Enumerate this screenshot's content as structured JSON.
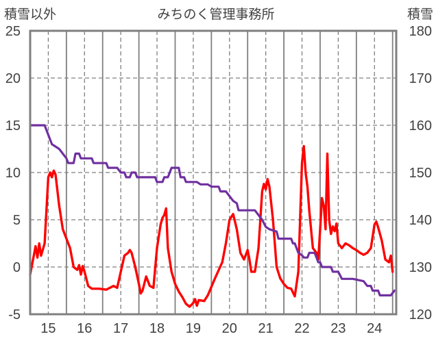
{
  "chart_data": {
    "type": "line",
    "title": "みちのく管理事務所",
    "y_left": {
      "label": "積雪以外",
      "range": [
        -5,
        25
      ],
      "ticks": [
        25,
        20,
        15,
        10,
        5,
        0,
        -5
      ]
    },
    "y_right": {
      "label": "積雪",
      "range": [
        120,
        180
      ],
      "ticks": [
        180,
        170,
        160,
        150,
        140,
        130,
        120
      ]
    },
    "x": {
      "range": [
        14.5,
        24.6
      ],
      "ticks": [
        15,
        16,
        17,
        18,
        19,
        20,
        21,
        22,
        23,
        24
      ]
    },
    "grid": {
      "horizontal": "dashed",
      "vertical_major": "solid",
      "vertical_minor": "dashed"
    },
    "colors": {
      "temperature": "#ff0000",
      "snow": "#7030a0",
      "frame": "#7f7f7f",
      "grid": "#7f7f7f"
    },
    "series": [
      {
        "axis": "left",
        "color": "#ff0000",
        "points": [
          [
            14.5,
            -0.8
          ],
          [
            14.6,
            1.2
          ],
          [
            14.65,
            2.2
          ],
          [
            14.7,
            1.0
          ],
          [
            14.75,
            2.5
          ],
          [
            14.8,
            1.2
          ],
          [
            14.9,
            2.5
          ],
          [
            15.0,
            9.5
          ],
          [
            15.05,
            10.0
          ],
          [
            15.1,
            9.5
          ],
          [
            15.15,
            10.2
          ],
          [
            15.2,
            9.8
          ],
          [
            15.3,
            6.5
          ],
          [
            15.4,
            4.0
          ],
          [
            15.5,
            3.0
          ],
          [
            15.6,
            2.0
          ],
          [
            15.7,
            0.0
          ],
          [
            15.8,
            -0.3
          ],
          [
            15.85,
            0.2
          ],
          [
            15.9,
            -0.8
          ],
          [
            15.95,
            0.1
          ],
          [
            16.0,
            -0.5
          ],
          [
            16.1,
            -2.0
          ],
          [
            16.2,
            -2.3
          ],
          [
            16.4,
            -2.3
          ],
          [
            16.6,
            -2.4
          ],
          [
            16.8,
            -2.0
          ],
          [
            16.9,
            -2.2
          ],
          [
            17.0,
            -0.5
          ],
          [
            17.1,
            1.2
          ],
          [
            17.2,
            1.5
          ],
          [
            17.25,
            1.8
          ],
          [
            17.3,
            1.5
          ],
          [
            17.4,
            0.0
          ],
          [
            17.5,
            -1.8
          ],
          [
            17.55,
            -2.8
          ],
          [
            17.6,
            -2.5
          ],
          [
            17.7,
            -1.0
          ],
          [
            17.8,
            -2.0
          ],
          [
            17.9,
            -2.2
          ],
          [
            18.0,
            2.0
          ],
          [
            18.1,
            4.5
          ],
          [
            18.15,
            5.2
          ],
          [
            18.2,
            5.5
          ],
          [
            18.25,
            6.2
          ],
          [
            18.3,
            2.0
          ],
          [
            18.4,
            -0.5
          ],
          [
            18.5,
            -1.8
          ],
          [
            18.6,
            -2.6
          ],
          [
            18.7,
            -3.2
          ],
          [
            18.8,
            -3.9
          ],
          [
            18.9,
            -4.2
          ],
          [
            19.0,
            -3.8
          ],
          [
            19.05,
            -3.4
          ],
          [
            19.1,
            -4.1
          ],
          [
            19.15,
            -3.5
          ],
          [
            19.3,
            -3.6
          ],
          [
            19.4,
            -3.0
          ],
          [
            19.6,
            -1.2
          ],
          [
            19.8,
            0.5
          ],
          [
            19.9,
            2.5
          ],
          [
            20.0,
            5.0
          ],
          [
            20.1,
            5.6
          ],
          [
            20.2,
            4.0
          ],
          [
            20.3,
            1.5
          ],
          [
            20.4,
            0.8
          ],
          [
            20.45,
            1.3
          ],
          [
            20.5,
            1.8
          ],
          [
            20.55,
            0.8
          ],
          [
            20.6,
            -0.5
          ],
          [
            20.7,
            -0.5
          ],
          [
            20.8,
            2.0
          ],
          [
            20.9,
            8.0
          ],
          [
            20.95,
            8.8
          ],
          [
            21.0,
            8.2
          ],
          [
            21.05,
            9.3
          ],
          [
            21.1,
            8.5
          ],
          [
            21.2,
            5.0
          ],
          [
            21.3,
            0.0
          ],
          [
            21.4,
            -1.2
          ],
          [
            21.5,
            -1.8
          ],
          [
            21.6,
            -2.2
          ],
          [
            21.7,
            -2.3
          ],
          [
            21.8,
            -3.1
          ],
          [
            21.9,
            -0.5
          ],
          [
            22.0,
            11.0
          ],
          [
            22.05,
            12.8
          ],
          [
            22.1,
            10.0
          ],
          [
            22.15,
            8.5
          ],
          [
            22.2,
            6.0
          ],
          [
            22.3,
            2.0
          ],
          [
            22.4,
            1.5
          ],
          [
            22.45,
            0.8
          ],
          [
            22.5,
            4.0
          ],
          [
            22.55,
            7.3
          ],
          [
            22.6,
            6.5
          ],
          [
            22.65,
            4.0
          ],
          [
            22.7,
            12.0
          ],
          [
            22.75,
            5.0
          ],
          [
            22.8,
            3.5
          ],
          [
            22.85,
            4.3
          ],
          [
            22.9,
            3.8
          ],
          [
            22.95,
            4.6
          ],
          [
            23.0,
            2.5
          ],
          [
            23.1,
            2.0
          ],
          [
            23.2,
            2.5
          ],
          [
            23.3,
            2.3
          ],
          [
            23.4,
            2.0
          ],
          [
            23.5,
            1.8
          ],
          [
            23.6,
            1.5
          ],
          [
            23.7,
            1.3
          ],
          [
            23.8,
            1.5
          ],
          [
            23.9,
            2.0
          ],
          [
            24.0,
            4.5
          ],
          [
            24.05,
            4.8
          ],
          [
            24.1,
            4.2
          ],
          [
            24.2,
            2.8
          ],
          [
            24.3,
            0.8
          ],
          [
            24.4,
            0.5
          ],
          [
            24.45,
            1.2
          ],
          [
            24.5,
            -0.5
          ]
        ]
      },
      {
        "axis": "right",
        "color": "#7030a0",
        "points": [
          [
            14.5,
            160
          ],
          [
            14.9,
            160
          ],
          [
            15.0,
            158
          ],
          [
            15.1,
            156
          ],
          [
            15.3,
            155
          ],
          [
            15.4,
            154
          ],
          [
            15.5,
            153
          ],
          [
            15.55,
            152
          ],
          [
            15.7,
            152
          ],
          [
            15.75,
            154
          ],
          [
            15.85,
            154
          ],
          [
            15.9,
            153
          ],
          [
            16.2,
            153
          ],
          [
            16.25,
            152
          ],
          [
            16.6,
            152
          ],
          [
            16.65,
            151
          ],
          [
            16.9,
            151
          ],
          [
            17.0,
            150
          ],
          [
            17.1,
            150
          ],
          [
            17.15,
            149
          ],
          [
            17.25,
            149
          ],
          [
            17.3,
            150
          ],
          [
            17.4,
            150
          ],
          [
            17.45,
            149
          ],
          [
            17.95,
            149
          ],
          [
            18.0,
            148
          ],
          [
            18.15,
            148
          ],
          [
            18.2,
            149
          ],
          [
            18.3,
            149
          ],
          [
            18.35,
            150
          ],
          [
            18.4,
            151
          ],
          [
            18.6,
            151
          ],
          [
            18.65,
            149
          ],
          [
            18.75,
            149
          ],
          [
            18.8,
            148
          ],
          [
            19.1,
            148
          ],
          [
            19.2,
            147.5
          ],
          [
            19.4,
            147.5
          ],
          [
            19.5,
            147
          ],
          [
            19.7,
            147
          ],
          [
            19.75,
            146
          ],
          [
            19.9,
            146
          ],
          [
            20.0,
            145
          ],
          [
            20.1,
            144
          ],
          [
            20.2,
            143.5
          ],
          [
            20.25,
            142
          ],
          [
            20.7,
            142
          ],
          [
            20.8,
            141
          ],
          [
            20.9,
            140
          ],
          [
            21.0,
            138.5
          ],
          [
            21.1,
            138
          ],
          [
            21.3,
            137.5
          ],
          [
            21.35,
            136
          ],
          [
            21.7,
            136
          ],
          [
            21.75,
            135
          ],
          [
            21.8,
            135
          ],
          [
            21.85,
            134
          ],
          [
            21.9,
            133
          ],
          [
            22.0,
            132.5
          ],
          [
            22.05,
            132
          ],
          [
            22.15,
            132
          ],
          [
            22.2,
            133
          ],
          [
            22.35,
            133
          ],
          [
            22.4,
            132
          ],
          [
            22.45,
            131
          ],
          [
            22.5,
            131
          ],
          [
            22.55,
            130
          ],
          [
            22.8,
            130
          ],
          [
            22.85,
            129
          ],
          [
            23.0,
            129
          ],
          [
            23.1,
            127.5
          ],
          [
            23.4,
            127.5
          ],
          [
            23.7,
            127
          ],
          [
            23.8,
            126
          ],
          [
            23.9,
            126
          ],
          [
            23.95,
            125
          ],
          [
            24.1,
            125
          ],
          [
            24.15,
            124
          ],
          [
            24.4,
            124
          ],
          [
            24.45,
            124
          ],
          [
            24.55,
            125
          ]
        ]
      }
    ]
  }
}
